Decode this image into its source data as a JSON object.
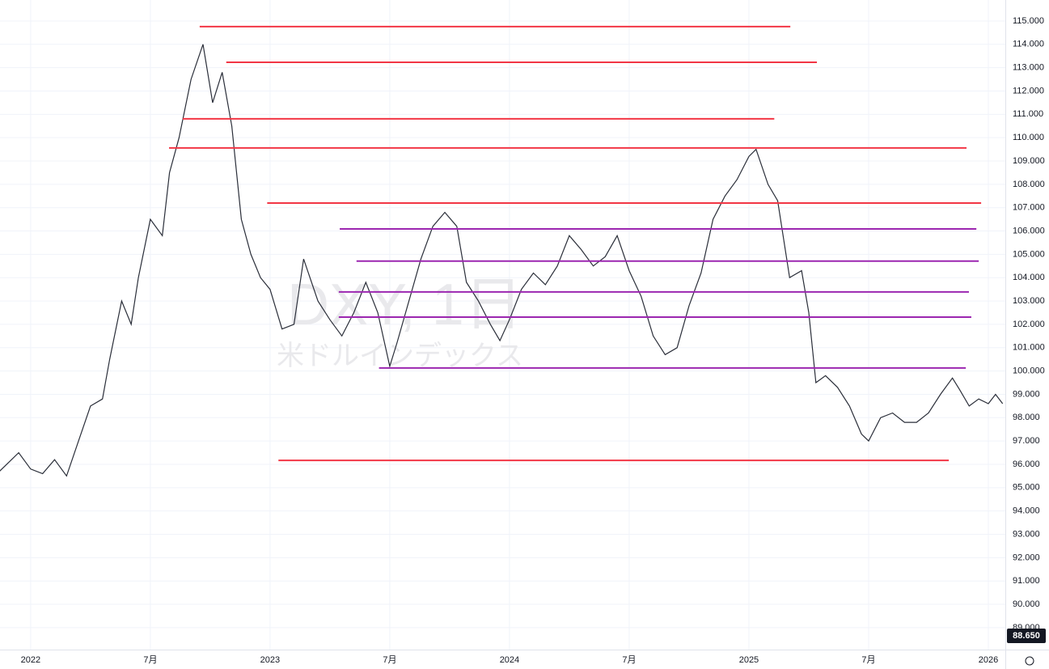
{
  "chart_data": {
    "type": "line",
    "watermark": {
      "symbol": "DXY, 1日",
      "name": "米ドルインデックス"
    },
    "x": [
      2021.87,
      2021.95,
      2022.0,
      2022.05,
      2022.1,
      2022.15,
      2022.2,
      2022.25,
      2022.3,
      2022.33,
      2022.38,
      2022.42,
      2022.45,
      2022.5,
      2022.55,
      2022.58,
      2022.62,
      2022.67,
      2022.72,
      2022.76,
      2022.8,
      2022.84,
      2022.88,
      2022.92,
      2022.96,
      2023.0,
      2023.05,
      2023.1,
      2023.14,
      2023.2,
      2023.25,
      2023.3,
      2023.35,
      2023.4,
      2023.45,
      2023.5,
      2023.53,
      2023.58,
      2023.63,
      2023.68,
      2023.73,
      2023.78,
      2023.82,
      2023.87,
      2023.92,
      2023.96,
      2024.0,
      2024.05,
      2024.1,
      2024.15,
      2024.2,
      2024.25,
      2024.3,
      2024.35,
      2024.4,
      2024.45,
      2024.5,
      2024.55,
      2024.6,
      2024.65,
      2024.7,
      2024.75,
      2024.8,
      2024.85,
      2024.9,
      2024.95,
      2025.0,
      2025.03,
      2025.08,
      2025.12,
      2025.17,
      2025.22,
      2025.25,
      2025.28,
      2025.32,
      2025.37,
      2025.42,
      2025.47,
      2025.5,
      2025.55,
      2025.6,
      2025.65,
      2025.7,
      2025.75,
      2025.8,
      2025.85,
      2025.88,
      2025.92,
      2025.96,
      2026.0,
      2026.03,
      2026.06
    ],
    "series": [
      {
        "color": "#2a2e39",
        "values": [
          95.7,
          96.5,
          95.8,
          95.6,
          96.2,
          95.5,
          97.0,
          98.5,
          98.8,
          100.5,
          103.0,
          102.0,
          104.0,
          106.5,
          105.8,
          108.5,
          110.0,
          112.5,
          114.0,
          111.5,
          112.8,
          110.5,
          106.5,
          105.0,
          104.0,
          103.5,
          101.8,
          102.0,
          104.8,
          103.0,
          102.2,
          101.5,
          102.5,
          103.8,
          102.5,
          100.2,
          101.2,
          103.0,
          104.8,
          106.2,
          106.8,
          106.2,
          103.8,
          103.0,
          102.0,
          101.3,
          102.2,
          103.5,
          104.2,
          103.7,
          104.5,
          105.8,
          105.2,
          104.5,
          104.9,
          105.8,
          104.3,
          103.2,
          101.5,
          100.7,
          101.0,
          102.8,
          104.2,
          106.5,
          107.5,
          108.2,
          109.2,
          109.5,
          108.0,
          107.3,
          104.0,
          104.3,
          102.5,
          99.5,
          99.8,
          99.3,
          98.5,
          97.3,
          97.0,
          98.0,
          98.2,
          97.8,
          97.8,
          98.2,
          99.0,
          99.7,
          99.2,
          98.5,
          98.8,
          98.6,
          99.0,
          98.6
        ]
      }
    ],
    "levels": [
      {
        "value": 114.76,
        "x": [
          2022.706,
          2025.173
        ],
        "color": "#f23645"
      },
      {
        "value": 113.23,
        "x": [
          2022.817,
          2025.284
        ],
        "color": "#f23645"
      },
      {
        "value": 110.81,
        "x": [
          2022.635,
          2025.106
        ],
        "color": "#f23645"
      },
      {
        "value": 109.56,
        "x": [
          2022.578,
          2025.909
        ],
        "color": "#f23645"
      },
      {
        "value": 107.2,
        "x": [
          2022.988,
          2025.97
        ],
        "color": "#f23645"
      },
      {
        "value": 106.09,
        "x": [
          2023.291,
          2025.95
        ],
        "color": "#9c27b0"
      },
      {
        "value": 104.71,
        "x": [
          2023.361,
          2025.96
        ],
        "color": "#9c27b0"
      },
      {
        "value": 103.39,
        "x": [
          2023.287,
          2025.919
        ],
        "color": "#9c27b0"
      },
      {
        "value": 102.31,
        "x": [
          2023.287,
          2025.929
        ],
        "color": "#9c27b0"
      },
      {
        "value": 100.13,
        "x": [
          2023.455,
          2025.906
        ],
        "color": "#9c27b0"
      },
      {
        "value": 96.17,
        "x": [
          2023.035,
          2025.835
        ],
        "color": "#f23645"
      }
    ],
    "xlim": [
      2021.872,
      2026.071
    ],
    "xticks": [
      {
        "value": 2022,
        "label": "2022"
      },
      {
        "value": 2022.5,
        "label": "7月"
      },
      {
        "value": 2023,
        "label": "2023"
      },
      {
        "value": 2023.5,
        "label": "7月"
      },
      {
        "value": 2024,
        "label": "2024"
      },
      {
        "value": 2024.5,
        "label": "7月"
      },
      {
        "value": 2025,
        "label": "2025"
      },
      {
        "value": 2025.5,
        "label": "7月"
      },
      {
        "value": 2026,
        "label": "2026"
      }
    ],
    "ylim": [
      88.06,
      115.9
    ],
    "yticks": [
      {
        "value": 89,
        "label": "89.000"
      },
      {
        "value": 90,
        "label": "90.000"
      },
      {
        "value": 91,
        "label": "91.000"
      },
      {
        "value": 92,
        "label": "92.000"
      },
      {
        "value": 93,
        "label": "93.000"
      },
      {
        "value": 94,
        "label": "94.000"
      },
      {
        "value": 95,
        "label": "95.000"
      },
      {
        "value": 96,
        "label": "96.000"
      },
      {
        "value": 97,
        "label": "97.000"
      },
      {
        "value": 98,
        "label": "98.000"
      },
      {
        "value": 99,
        "label": "99.000"
      },
      {
        "value": 100,
        "label": "100.000"
      },
      {
        "value": 101,
        "label": "101.000"
      },
      {
        "value": 102,
        "label": "102.000"
      },
      {
        "value": 103,
        "label": "103.000"
      },
      {
        "value": 104,
        "label": "104.000"
      },
      {
        "value": 105,
        "label": "105.000"
      },
      {
        "value": 106,
        "label": "106.000"
      },
      {
        "value": 107,
        "label": "107.000"
      },
      {
        "value": 108,
        "label": "108.000"
      },
      {
        "value": 109,
        "label": "109.000"
      },
      {
        "value": 110,
        "label": "110.000"
      },
      {
        "value": 111,
        "label": "111.000"
      },
      {
        "value": 112,
        "label": "112.000"
      },
      {
        "value": 113,
        "label": "113.000"
      },
      {
        "value": 114,
        "label": "114.000"
      },
      {
        "value": 115,
        "label": "115.000"
      }
    ],
    "price_tag": {
      "value": 88.65,
      "label": "88.650"
    },
    "grid": true
  }
}
